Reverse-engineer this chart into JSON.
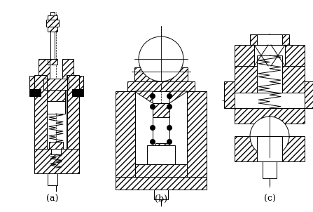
{
  "bg_color": "#ffffff",
  "lc": "#000000",
  "label_a": "(a)",
  "label_b": "(b)",
  "label_c": "(c)",
  "label_fontsize": 9,
  "figsize": [
    4.47,
    3.02
  ],
  "dpi": 100
}
